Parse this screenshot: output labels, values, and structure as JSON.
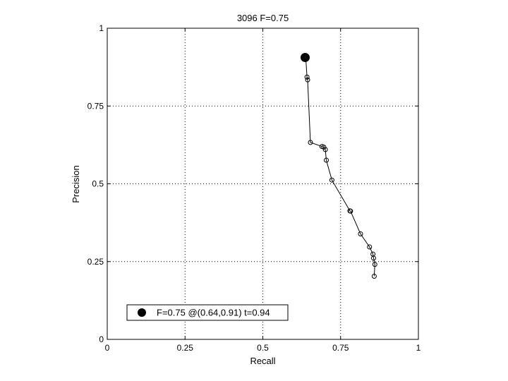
{
  "chart_data": {
    "type": "line",
    "title": "3096 F=0.75",
    "xlabel": "Recall",
    "ylabel": "Precision",
    "xlim": [
      0,
      1
    ],
    "ylim": [
      0,
      1
    ],
    "grid": true,
    "xticks": [
      0,
      0.25,
      0.5,
      0.75,
      1
    ],
    "yticks": [
      0,
      0.25,
      0.5,
      0.75,
      1
    ],
    "xtick_labels": [
      "0",
      "0.25",
      "0.5",
      "0.75",
      "1"
    ],
    "ytick_labels": [
      "0",
      "0.25",
      "0.5",
      "0.75",
      "1"
    ],
    "series": [
      {
        "marker": "open-circle",
        "color": "#000000",
        "points": [
          {
            "x": 0.638,
            "y": 0.906
          },
          {
            "x": 0.642,
            "y": 0.843
          },
          {
            "x": 0.644,
            "y": 0.834
          },
          {
            "x": 0.653,
            "y": 0.633
          },
          {
            "x": 0.69,
            "y": 0.62
          },
          {
            "x": 0.696,
            "y": 0.618
          },
          {
            "x": 0.701,
            "y": 0.61
          },
          {
            "x": 0.704,
            "y": 0.576
          },
          {
            "x": 0.722,
            "y": 0.512
          },
          {
            "x": 0.78,
            "y": 0.413
          },
          {
            "x": 0.782,
            "y": 0.412
          },
          {
            "x": 0.814,
            "y": 0.339
          },
          {
            "x": 0.843,
            "y": 0.297
          },
          {
            "x": 0.854,
            "y": 0.274
          },
          {
            "x": 0.856,
            "y": 0.261
          },
          {
            "x": 0.86,
            "y": 0.241
          },
          {
            "x": 0.858,
            "y": 0.203
          }
        ]
      }
    ],
    "best_point": {
      "x": 0.636,
      "y": 0.906,
      "marker": "filled-circle",
      "color": "#000000"
    },
    "legend": {
      "placement": "bottom-left",
      "entries": [
        "F=0.75 @(0.64,0.91) t=0.94"
      ]
    }
  }
}
